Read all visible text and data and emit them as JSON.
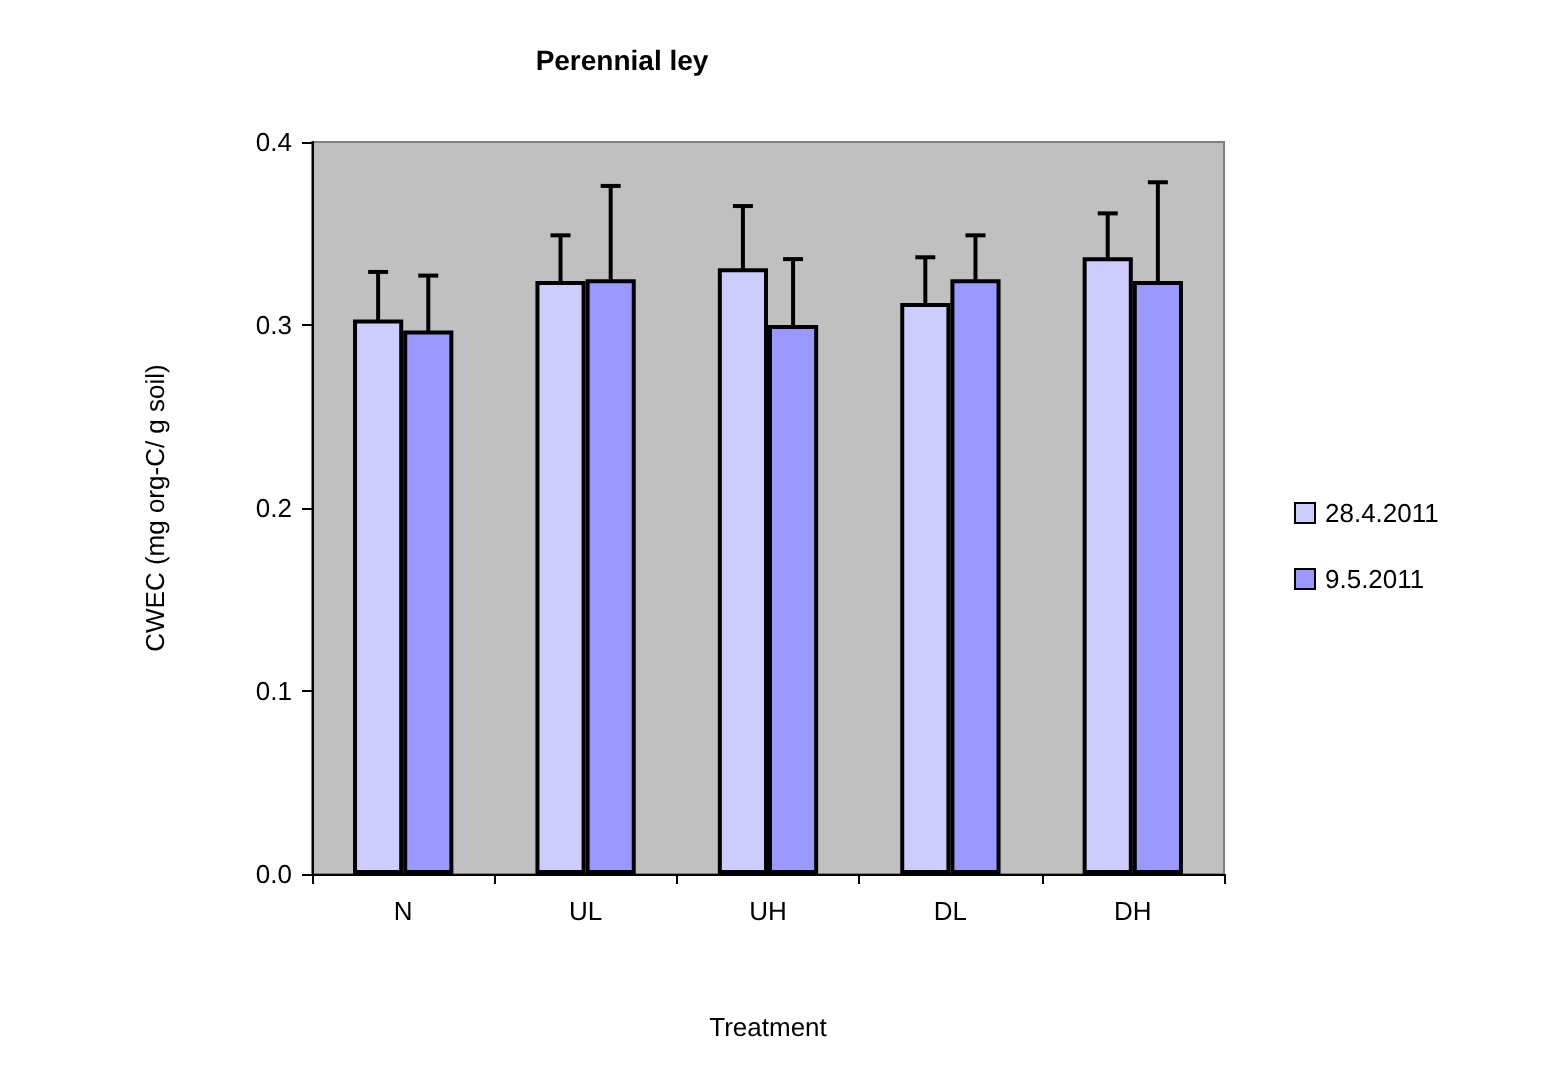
{
  "chart_data": {
    "type": "bar",
    "title": "Perennial ley",
    "xlabel": "Treatment",
    "ylabel": "CWEC (mg org-C/ g soil)",
    "categories": [
      "N",
      "UL",
      "UH",
      "DL",
      "DH"
    ],
    "series": [
      {
        "name": "28.4.2011",
        "color": "#ccccff",
        "values": [
          0.303,
          0.324,
          0.331,
          0.312,
          0.337
        ],
        "errors": [
          0.026,
          0.025,
          0.034,
          0.025,
          0.024
        ]
      },
      {
        "name": "9.5.2011",
        "color": "#9999ff",
        "values": [
          0.297,
          0.325,
          0.3,
          0.325,
          0.324
        ],
        "errors": [
          0.03,
          0.051,
          0.036,
          0.024,
          0.054
        ]
      }
    ],
    "ylim": [
      0,
      0.4
    ],
    "yticks": [
      {
        "value": 0,
        "label": "0.0"
      },
      {
        "value": 0.1,
        "label": "0.1"
      },
      {
        "value": 0.2,
        "label": "0.2"
      },
      {
        "value": 0.3,
        "label": "0.3"
      },
      {
        "value": 0.4,
        "label": "0.4"
      }
    ],
    "legend": "right"
  }
}
